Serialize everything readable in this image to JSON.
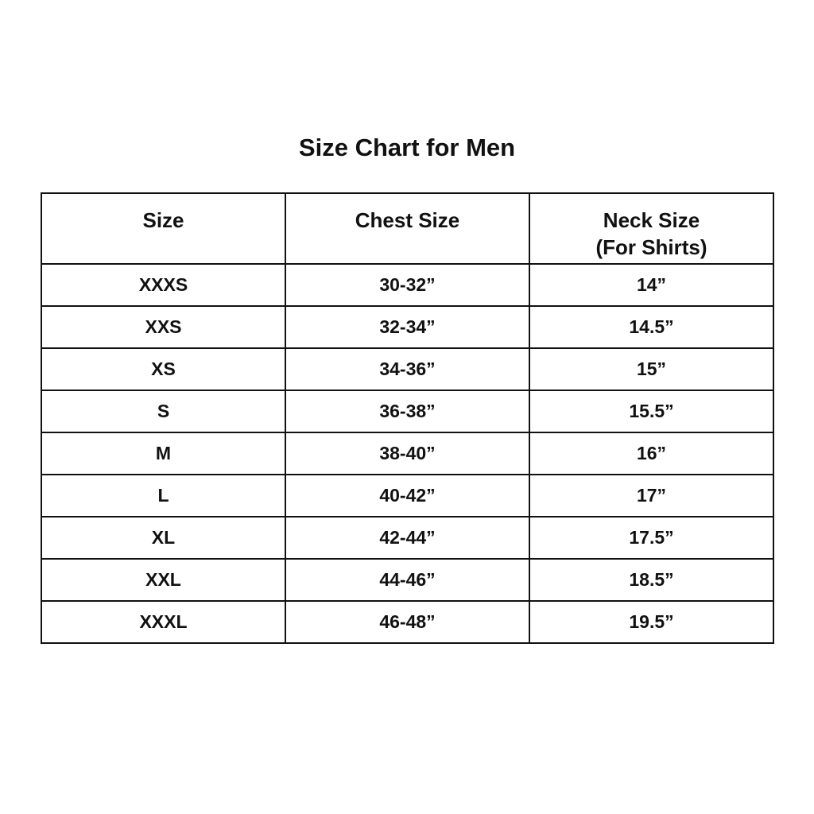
{
  "title": "Size Chart for Men",
  "columns": [
    "Size",
    "Chest Size",
    "Neck Size",
    "(For Shirts)"
  ],
  "rows": [
    [
      "XXXS",
      "30-32”",
      "14”"
    ],
    [
      "XXS",
      "32-34”",
      "14.5”"
    ],
    [
      "XS",
      "34-36”",
      "15”"
    ],
    [
      "S",
      "36-38”",
      "15.5”"
    ],
    [
      "M",
      "38-40”",
      "16”"
    ],
    [
      "L",
      "40-42”",
      "17”"
    ],
    [
      "XL",
      "42-44”",
      "17.5”"
    ],
    [
      "XXL",
      "44-46”",
      "18.5”"
    ],
    [
      "XXXL",
      "46-48”",
      "19.5”"
    ]
  ]
}
